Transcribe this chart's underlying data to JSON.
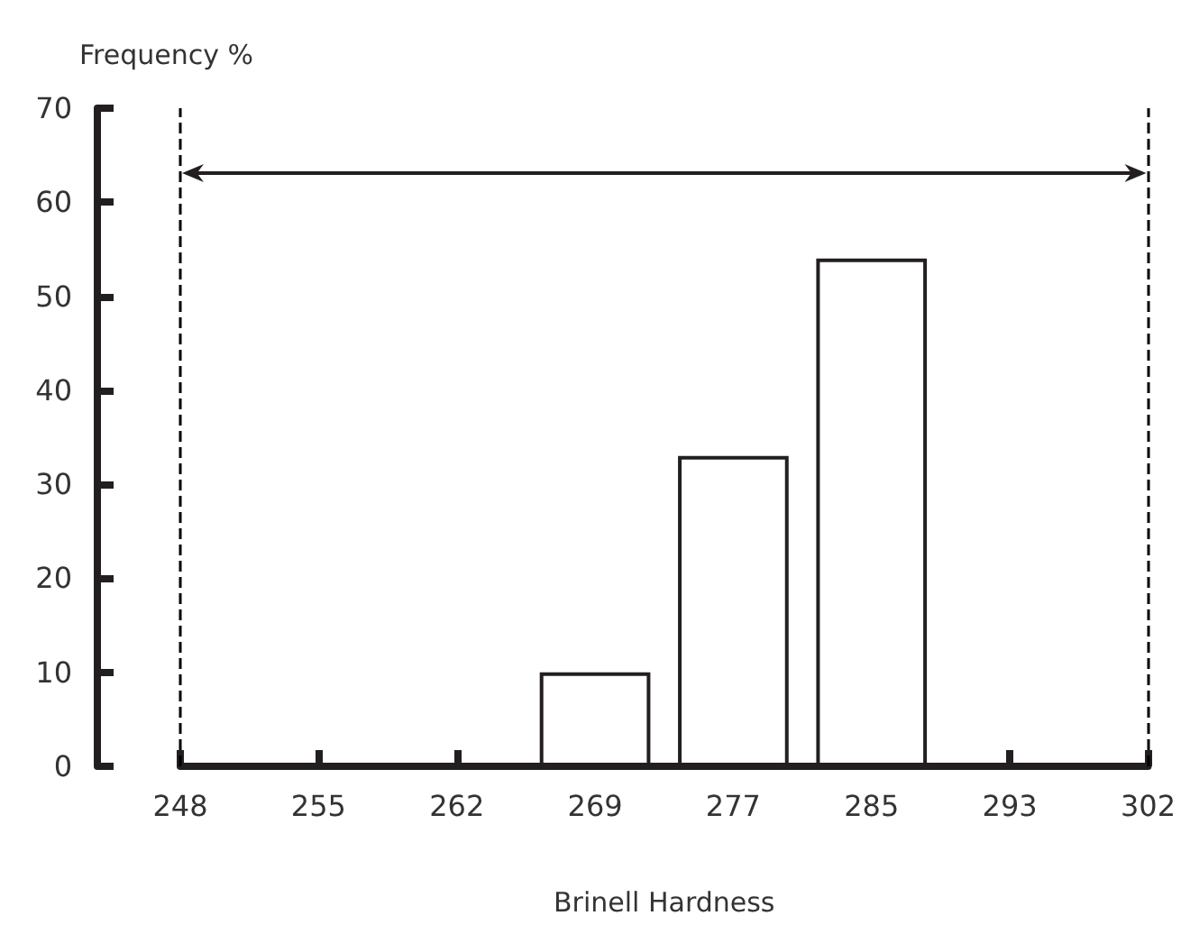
{
  "chart_data": {
    "type": "bar",
    "xlabel": "Brinell Hardness",
    "ylabel": "Frequency %",
    "categories": [
      "248",
      "255",
      "262",
      "269",
      "277",
      "285",
      "293",
      "302"
    ],
    "values": [
      null,
      null,
      null,
      10,
      33,
      54,
      null,
      null
    ],
    "color": "#ffffff",
    "ylim": [
      0,
      70
    ],
    "yticks": [
      0,
      10,
      20,
      30,
      40,
      50,
      60,
      70
    ],
    "grid": false,
    "ref_lines": [
      {
        "axis": "x",
        "value": "248",
        "color": "#000000",
        "line_style": "dashed"
      },
      {
        "axis": "x",
        "value": "302",
        "color": "#000000",
        "line_style": "dashed"
      }
    ]
  }
}
